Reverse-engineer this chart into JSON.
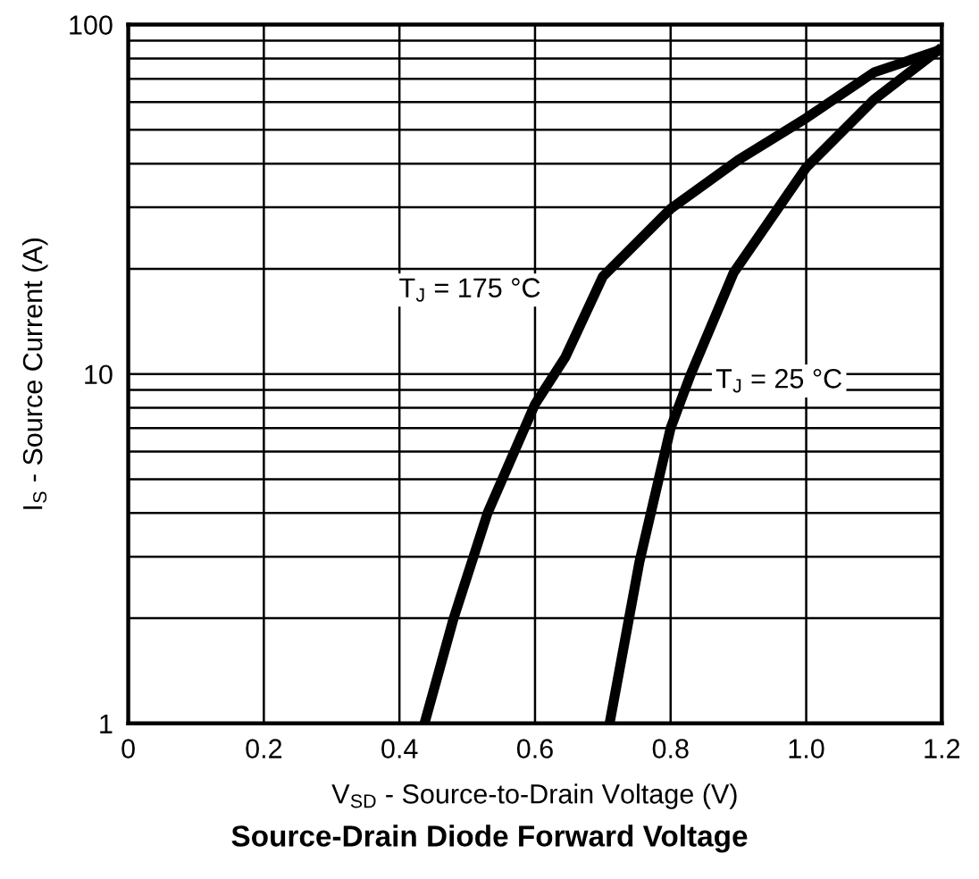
{
  "chart_data": {
    "type": "line",
    "title": "Source-Drain Diode Forward Voltage",
    "xlabel": "V$_{SD}$ - Source-to-Drain Voltage (V)",
    "ylabel": "I$_{S}$ - Source Current (A)",
    "series": [
      {
        "name": "T$_{J}$ = 175 °C",
        "color": "#000000",
        "x": [
          0.437,
          0.48,
          0.53,
          0.6,
          0.645,
          0.7,
          0.8,
          0.9,
          1.0,
          1.1,
          1.2
        ],
        "values": [
          1,
          2.0,
          4.0,
          8.2,
          11.2,
          19,
          29.7,
          41,
          54,
          73,
          85
        ]
      },
      {
        "name": "T$_{J}$ = 25 °C",
        "color": "#000000",
        "x": [
          0.71,
          0.754,
          0.8,
          0.829,
          0.893,
          1.0,
          1.1,
          1.2
        ],
        "values": [
          1,
          2.9,
          7,
          9.9,
          19.5,
          39,
          61,
          86
        ]
      }
    ],
    "log": "y",
    "xlim": [
      0,
      1.2
    ],
    "ylim": [
      1,
      100
    ],
    "xticks": [
      0,
      0.2,
      0.4,
      0.6,
      0.8,
      {
        "value": 1.0,
        "label": "1.0"
      },
      1.2
    ],
    "yticks": [
      1,
      {
        "value": 2,
        "label": null
      },
      {
        "value": 3,
        "label": null
      },
      {
        "value": 4,
        "label": null
      },
      {
        "value": 5,
        "label": null
      },
      {
        "value": 6,
        "label": null
      },
      {
        "value": 7,
        "label": null
      },
      {
        "value": 8,
        "label": null
      },
      {
        "value": 9,
        "label": null
      },
      10,
      {
        "value": 20,
        "label": null
      },
      {
        "value": 30,
        "label": null
      },
      {
        "value": 40,
        "label": null
      },
      {
        "value": 50,
        "label": null
      },
      {
        "value": 60,
        "label": null
      },
      {
        "value": 70,
        "label": null
      },
      {
        "value": 80,
        "label": null
      },
      {
        "value": 90,
        "label": null
      },
      100
    ],
    "grid": true,
    "line_style": "solid",
    "marker": "none"
  }
}
